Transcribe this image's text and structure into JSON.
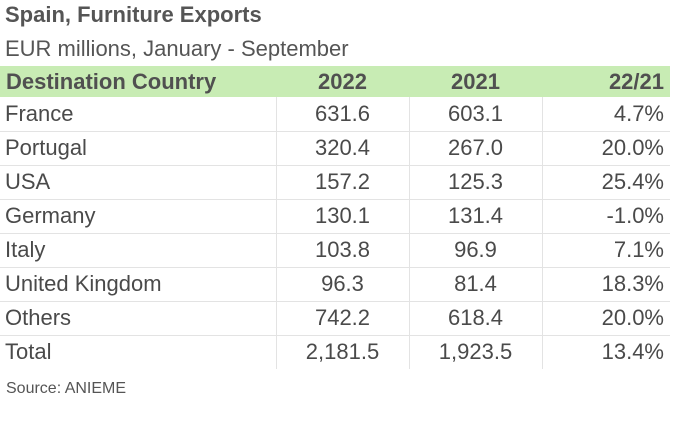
{
  "title": "Spain, Furniture Exports",
  "subtitle": "EUR millions, January - September",
  "source": "Source: ANIEME",
  "colors": {
    "header_bg": "#c8ecb4",
    "text": "#4a4a4a",
    "grid": "#e3e3e3"
  },
  "chart_data": {
    "type": "table",
    "columns": [
      "Destination Country",
      "2022",
      "2021",
      "22/21"
    ],
    "rows": [
      [
        "France",
        "631.6",
        "603.1",
        "4.7%"
      ],
      [
        "Portugal",
        "320.4",
        "267.0",
        "20.0%"
      ],
      [
        "USA",
        "157.2",
        "125.3",
        "25.4%"
      ],
      [
        "Germany",
        "130.1",
        "131.4",
        "-1.0%"
      ],
      [
        "Italy",
        "103.8",
        "96.9",
        "7.1%"
      ],
      [
        "United Kingdom",
        "96.3",
        "81.4",
        "18.3%"
      ],
      [
        "Others",
        "742.2",
        "618.4",
        "20.0%"
      ],
      [
        "Total",
        "2,181.5",
        "1,923.5",
        "13.4%"
      ]
    ]
  }
}
